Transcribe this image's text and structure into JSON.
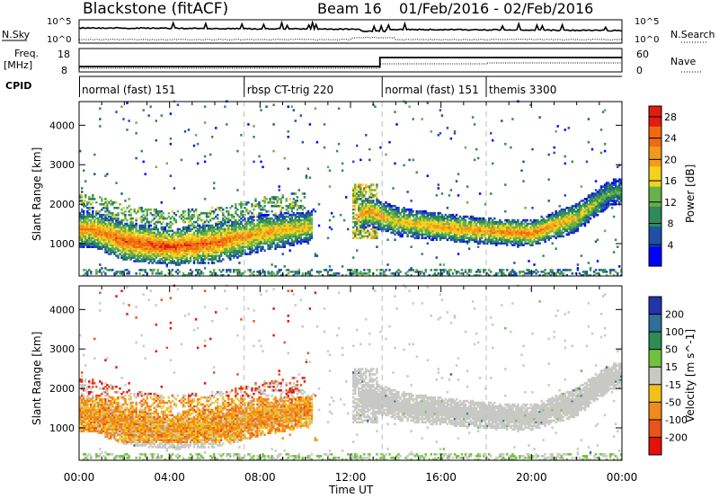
{
  "header": {
    "station": "Blackstone (fitACF)",
    "beam": "Beam 16",
    "date_range": "01/Feb/2016 - 02/Feb/2016"
  },
  "top_panels": {
    "nsky_label": "N.Sky",
    "nsky_ticks": [
      "10^5",
      "10^0"
    ],
    "nsearch_label": "N.Search",
    "freq_label": "Freq.",
    "freq_unit": "[MHz]",
    "freq_ticks": [
      "18",
      "8"
    ],
    "nave_label": "Nave",
    "nave_ticks": [
      "60",
      "0"
    ],
    "cpid_label": "CPID",
    "cpid_segments": [
      {
        "name": "normal (fast) 151",
        "start_hour": 0.0,
        "end_hour": 7.3
      },
      {
        "name": "rbsp CT-trig 220",
        "start_hour": 7.3,
        "end_hour": 13.4
      },
      {
        "name": "normal (fast) 151",
        "start_hour": 13.4,
        "end_hour": 18.0
      },
      {
        "name": "themis 3300",
        "start_hour": 18.0,
        "end_hour": 24.0
      }
    ]
  },
  "chart_data": [
    {
      "type": "heatmap",
      "title": "Power",
      "xlabel": "Time UT",
      "ylabel": "Slant Range [km]",
      "x_ticks": [
        "00:00",
        "04:00",
        "08:00",
        "12:00",
        "16:00",
        "20:00",
        "00:00"
      ],
      "xlim_hours": [
        0,
        24
      ],
      "ylim": [
        180,
        4600
      ],
      "y_ticks": [
        1000,
        2000,
        3000,
        4000
      ],
      "colorbar": {
        "label": "Power [dB]",
        "ticks": [
          4,
          8,
          12,
          16,
          20,
          24,
          28
        ],
        "range": [
          0,
          30
        ],
        "colors": [
          "#0000ff",
          "#1f4fa8",
          "#2e8b57",
          "#66b24a",
          "#f2d21b",
          "#f29a1b",
          "#ef6a12",
          "#e21d0d"
        ]
      },
      "band": [
        {
          "hour": 0.5,
          "center": 1350,
          "spread": 420,
          "peak": 22
        },
        {
          "hour": 2.0,
          "center": 1050,
          "spread": 450,
          "peak": 26
        },
        {
          "hour": 4.0,
          "center": 900,
          "spread": 420,
          "peak": 27
        },
        {
          "hour": 6.0,
          "center": 1000,
          "spread": 460,
          "peak": 25
        },
        {
          "hour": 8.0,
          "center": 1250,
          "spread": 430,
          "peak": 21
        },
        {
          "hour": 10.0,
          "center": 1400,
          "spread": 360,
          "peak": 18
        },
        {
          "hour": 12.8,
          "center": 1800,
          "spread": 350,
          "peak": 22
        },
        {
          "hour": 14.0,
          "center": 1550,
          "spread": 340,
          "peak": 18
        },
        {
          "hour": 16.0,
          "center": 1400,
          "spread": 320,
          "peak": 21
        },
        {
          "hour": 18.0,
          "center": 1300,
          "spread": 300,
          "peak": 22
        },
        {
          "hour": 20.0,
          "center": 1250,
          "spread": 300,
          "peak": 24
        },
        {
          "hour": 22.0,
          "center": 1650,
          "spread": 330,
          "peak": 18
        },
        {
          "hour": 23.5,
          "center": 2300,
          "spread": 300,
          "peak": 12
        }
      ]
    },
    {
      "type": "heatmap",
      "title": "Velocity",
      "xlabel": "Time UT",
      "ylabel": "Slant Range [km]",
      "x_ticks": [
        "00:00",
        "04:00",
        "08:00",
        "12:00",
        "16:00",
        "20:00",
        "00:00"
      ],
      "xlim_hours": [
        0,
        24
      ],
      "ylim": [
        180,
        4600
      ],
      "y_ticks": [
        1000,
        2000,
        3000,
        4000
      ],
      "colorbar": {
        "label": "Velocity [m s^-1]",
        "ticks": [
          "200",
          "100",
          "50",
          "15",
          "-15",
          "-50",
          "-100",
          "-200"
        ],
        "colors": [
          "#2333a8",
          "#2f6f9a",
          "#2e8b57",
          "#6ec23c",
          "#c8c8c4",
          "#f2c21b",
          "#f08a1b",
          "#e8541a",
          "#e2120d"
        ]
      }
    }
  ]
}
